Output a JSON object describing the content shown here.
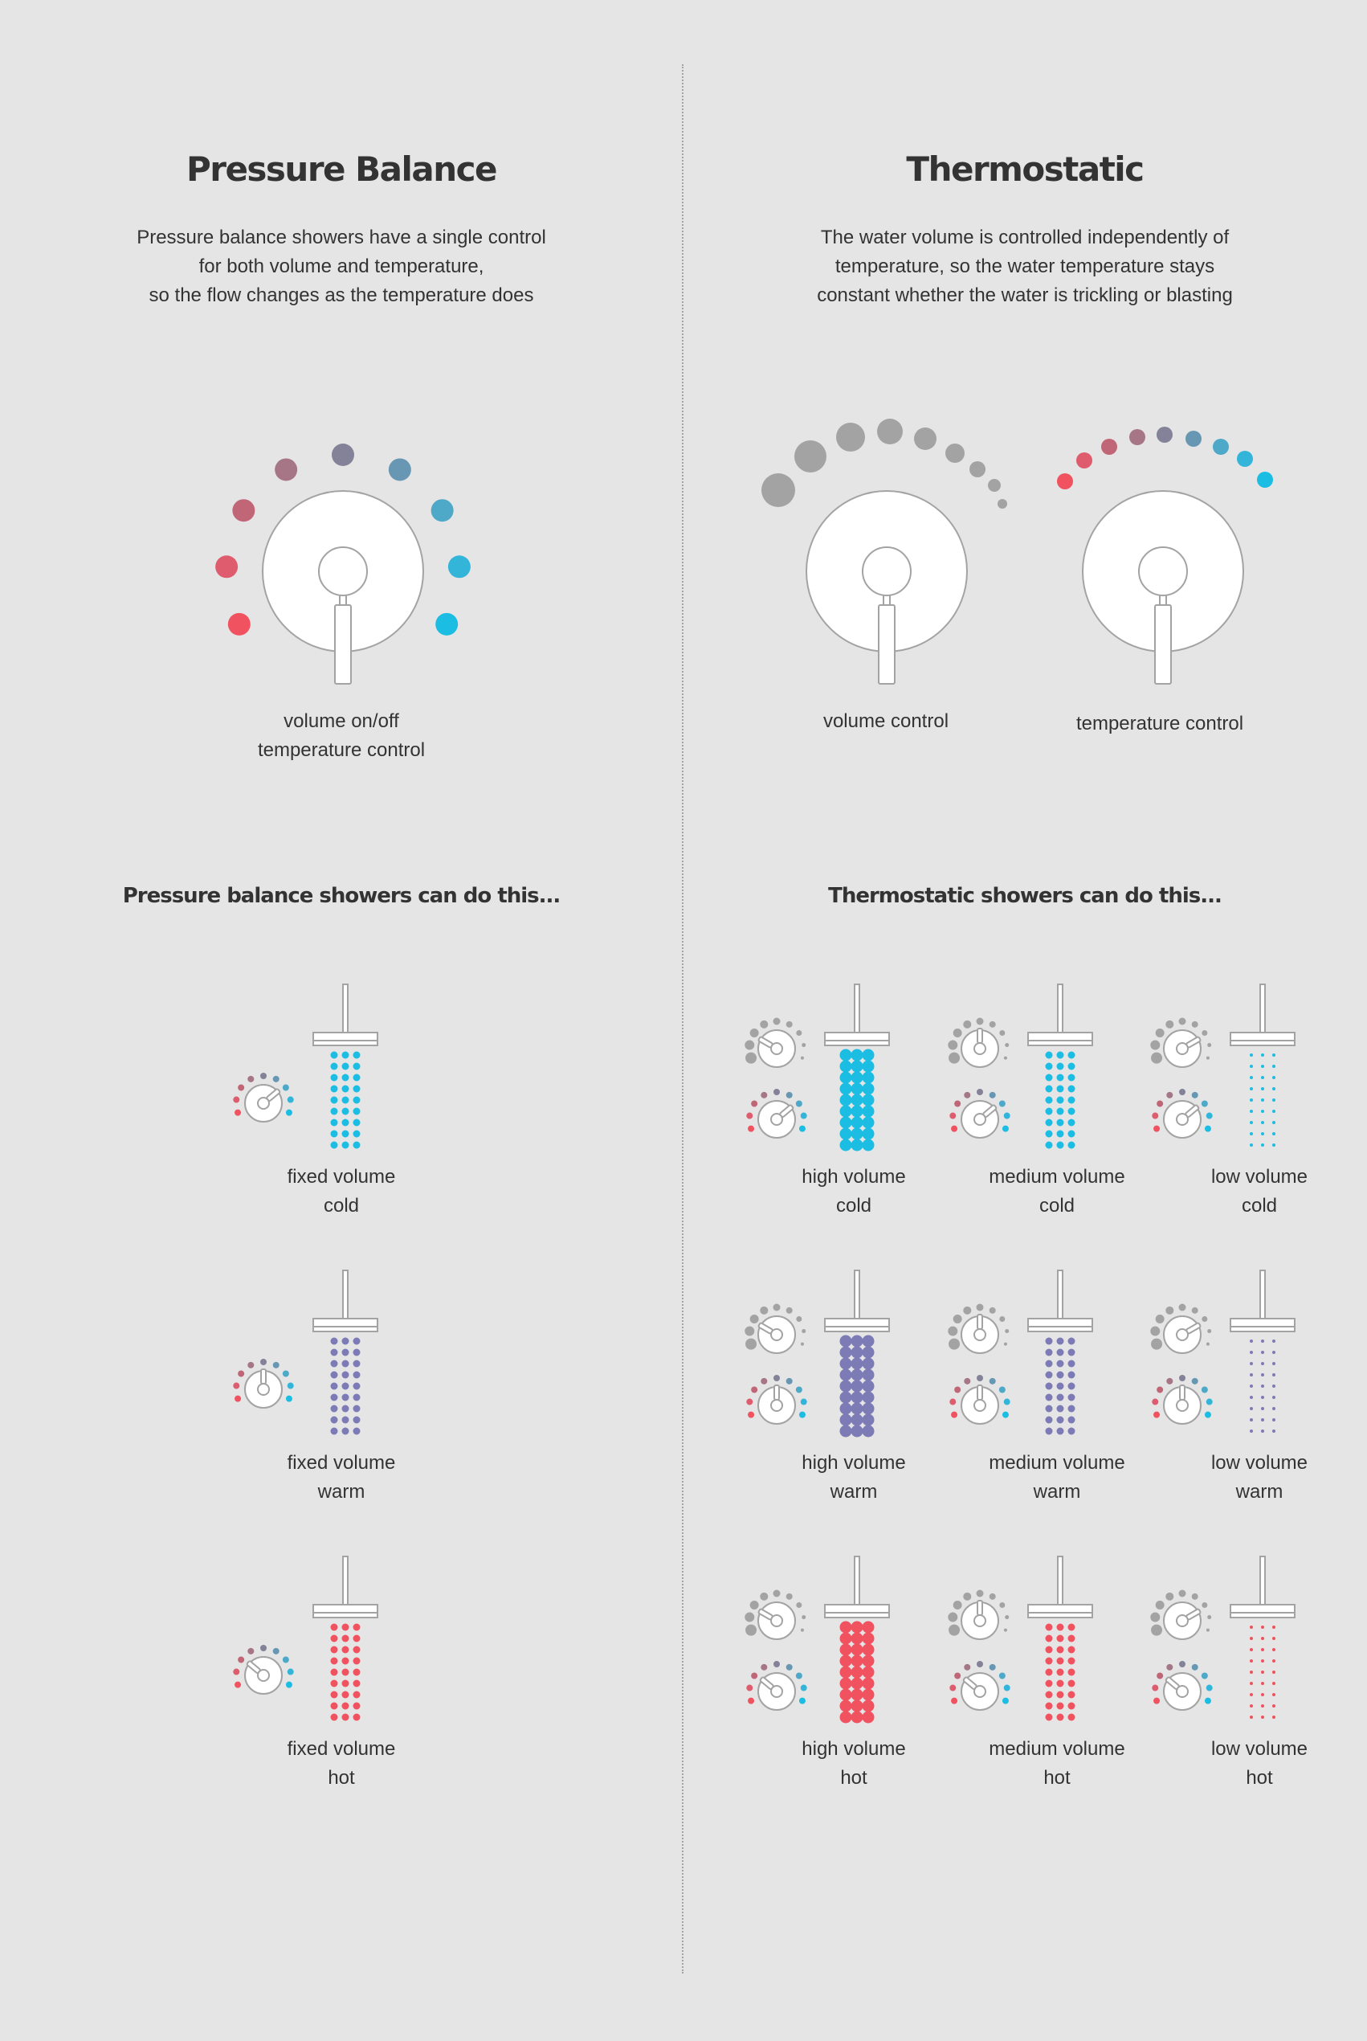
{
  "colors": {
    "background": "#e5e5e5",
    "text": "#333333",
    "outline": "#a3a3a3",
    "fill": "#ffffff",
    "cold": "#1bbde3",
    "warm": "#7d7bb5",
    "hot": "#f0525f",
    "volume_dots": "#a3a3a3",
    "temperature_gradient": [
      "#f0525f",
      "#de5c6d",
      "#c06676",
      "#a67686",
      "#838299",
      "#6797b3",
      "#4ea8c8",
      "#33b4d9",
      "#1bbde3"
    ]
  },
  "left": {
    "title": "Pressure Balance",
    "description": "Pressure balance showers have a single control\nfor both volume and temperature,\nso the flow changes as the temperature does",
    "dial_label": "volume on/off\ntemperature control",
    "subheading": "Pressure balance showers can do this...",
    "examples": [
      {
        "label": "fixed volume\ncold",
        "temp": "cold",
        "volume": "fixed"
      },
      {
        "label": "fixed volume\nwarm",
        "temp": "warm",
        "volume": "fixed"
      },
      {
        "label": "fixed volume\nhot",
        "temp": "hot",
        "volume": "fixed"
      }
    ]
  },
  "right": {
    "title": "Thermostatic",
    "description": "The water volume is controlled independently of\ntemperature, so the water temperature stays\nconstant whether the water is trickling or blasting",
    "volume_dial_label": "volume control",
    "temperature_dial_label": "temperature control",
    "subheading": "Thermostatic showers can do this...",
    "examples": [
      {
        "label": "high volume\ncold",
        "temp": "cold",
        "volume": "high"
      },
      {
        "label": "medium volume\ncold",
        "temp": "cold",
        "volume": "medium"
      },
      {
        "label": "low volume\ncold",
        "temp": "cold",
        "volume": "low"
      },
      {
        "label": "high volume\nwarm",
        "temp": "warm",
        "volume": "high"
      },
      {
        "label": "medium volume\nwarm",
        "temp": "warm",
        "volume": "medium"
      },
      {
        "label": "low volume\nwarm",
        "temp": "warm",
        "volume": "low"
      },
      {
        "label": "high volume\nhot",
        "temp": "hot",
        "volume": "high"
      },
      {
        "label": "medium volume\nhot",
        "temp": "hot",
        "volume": "medium"
      },
      {
        "label": "low volume\nhot",
        "temp": "hot",
        "volume": "low"
      }
    ]
  }
}
